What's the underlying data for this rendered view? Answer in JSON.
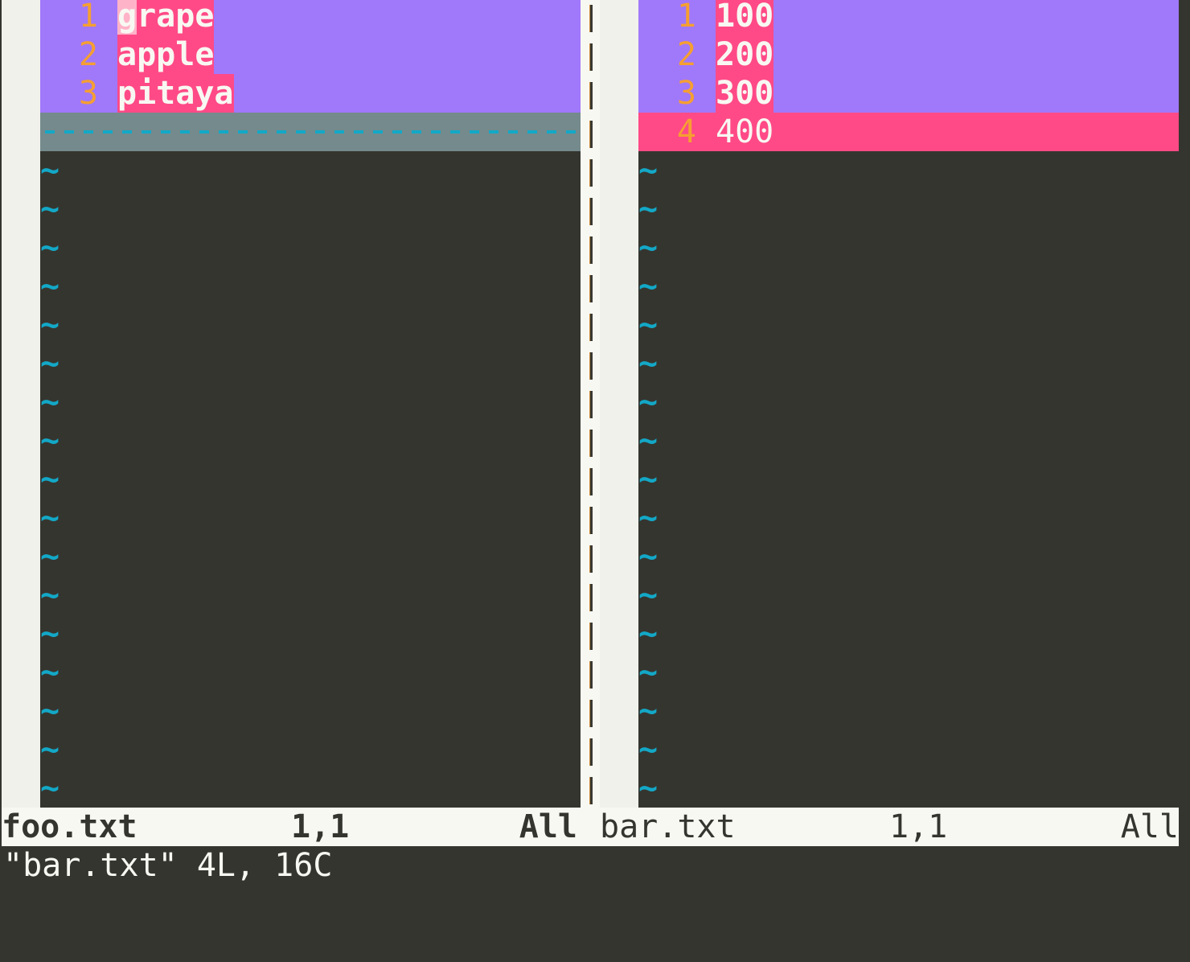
{
  "colors": {
    "background": "#35352f",
    "diff_change": "#a078fa",
    "diff_text": "#ff4a87",
    "diff_add": "#ff4a87",
    "filler": "#758a8c",
    "tilde": "#13a8c7",
    "line_number": "#f59f31",
    "status_bg": "#f8f8f2"
  },
  "left": {
    "lines": [
      {
        "num": "1",
        "text": "grape",
        "type": "change"
      },
      {
        "num": "2",
        "text": "apple",
        "type": "change"
      },
      {
        "num": "3",
        "text": "pitaya",
        "type": "change"
      },
      {
        "num": "",
        "text": "",
        "type": "filler"
      }
    ],
    "tilde_count": 17,
    "status": {
      "file": "foo.txt",
      "position": "1,1",
      "scroll": "All"
    }
  },
  "right": {
    "lines": [
      {
        "num": "1",
        "text": "100",
        "type": "change"
      },
      {
        "num": "2",
        "text": "200",
        "type": "change"
      },
      {
        "num": "3",
        "text": "300",
        "type": "change"
      },
      {
        "num": "4",
        "text": "400",
        "type": "add"
      }
    ],
    "tilde_count": 17,
    "status": {
      "file": "bar.txt",
      "position": "1,1",
      "scroll": "All"
    }
  },
  "cursor": {
    "window": "left",
    "line": 1,
    "col": 1
  },
  "cmdline": "\"bar.txt\" 4L, 16C",
  "tilde": "~"
}
